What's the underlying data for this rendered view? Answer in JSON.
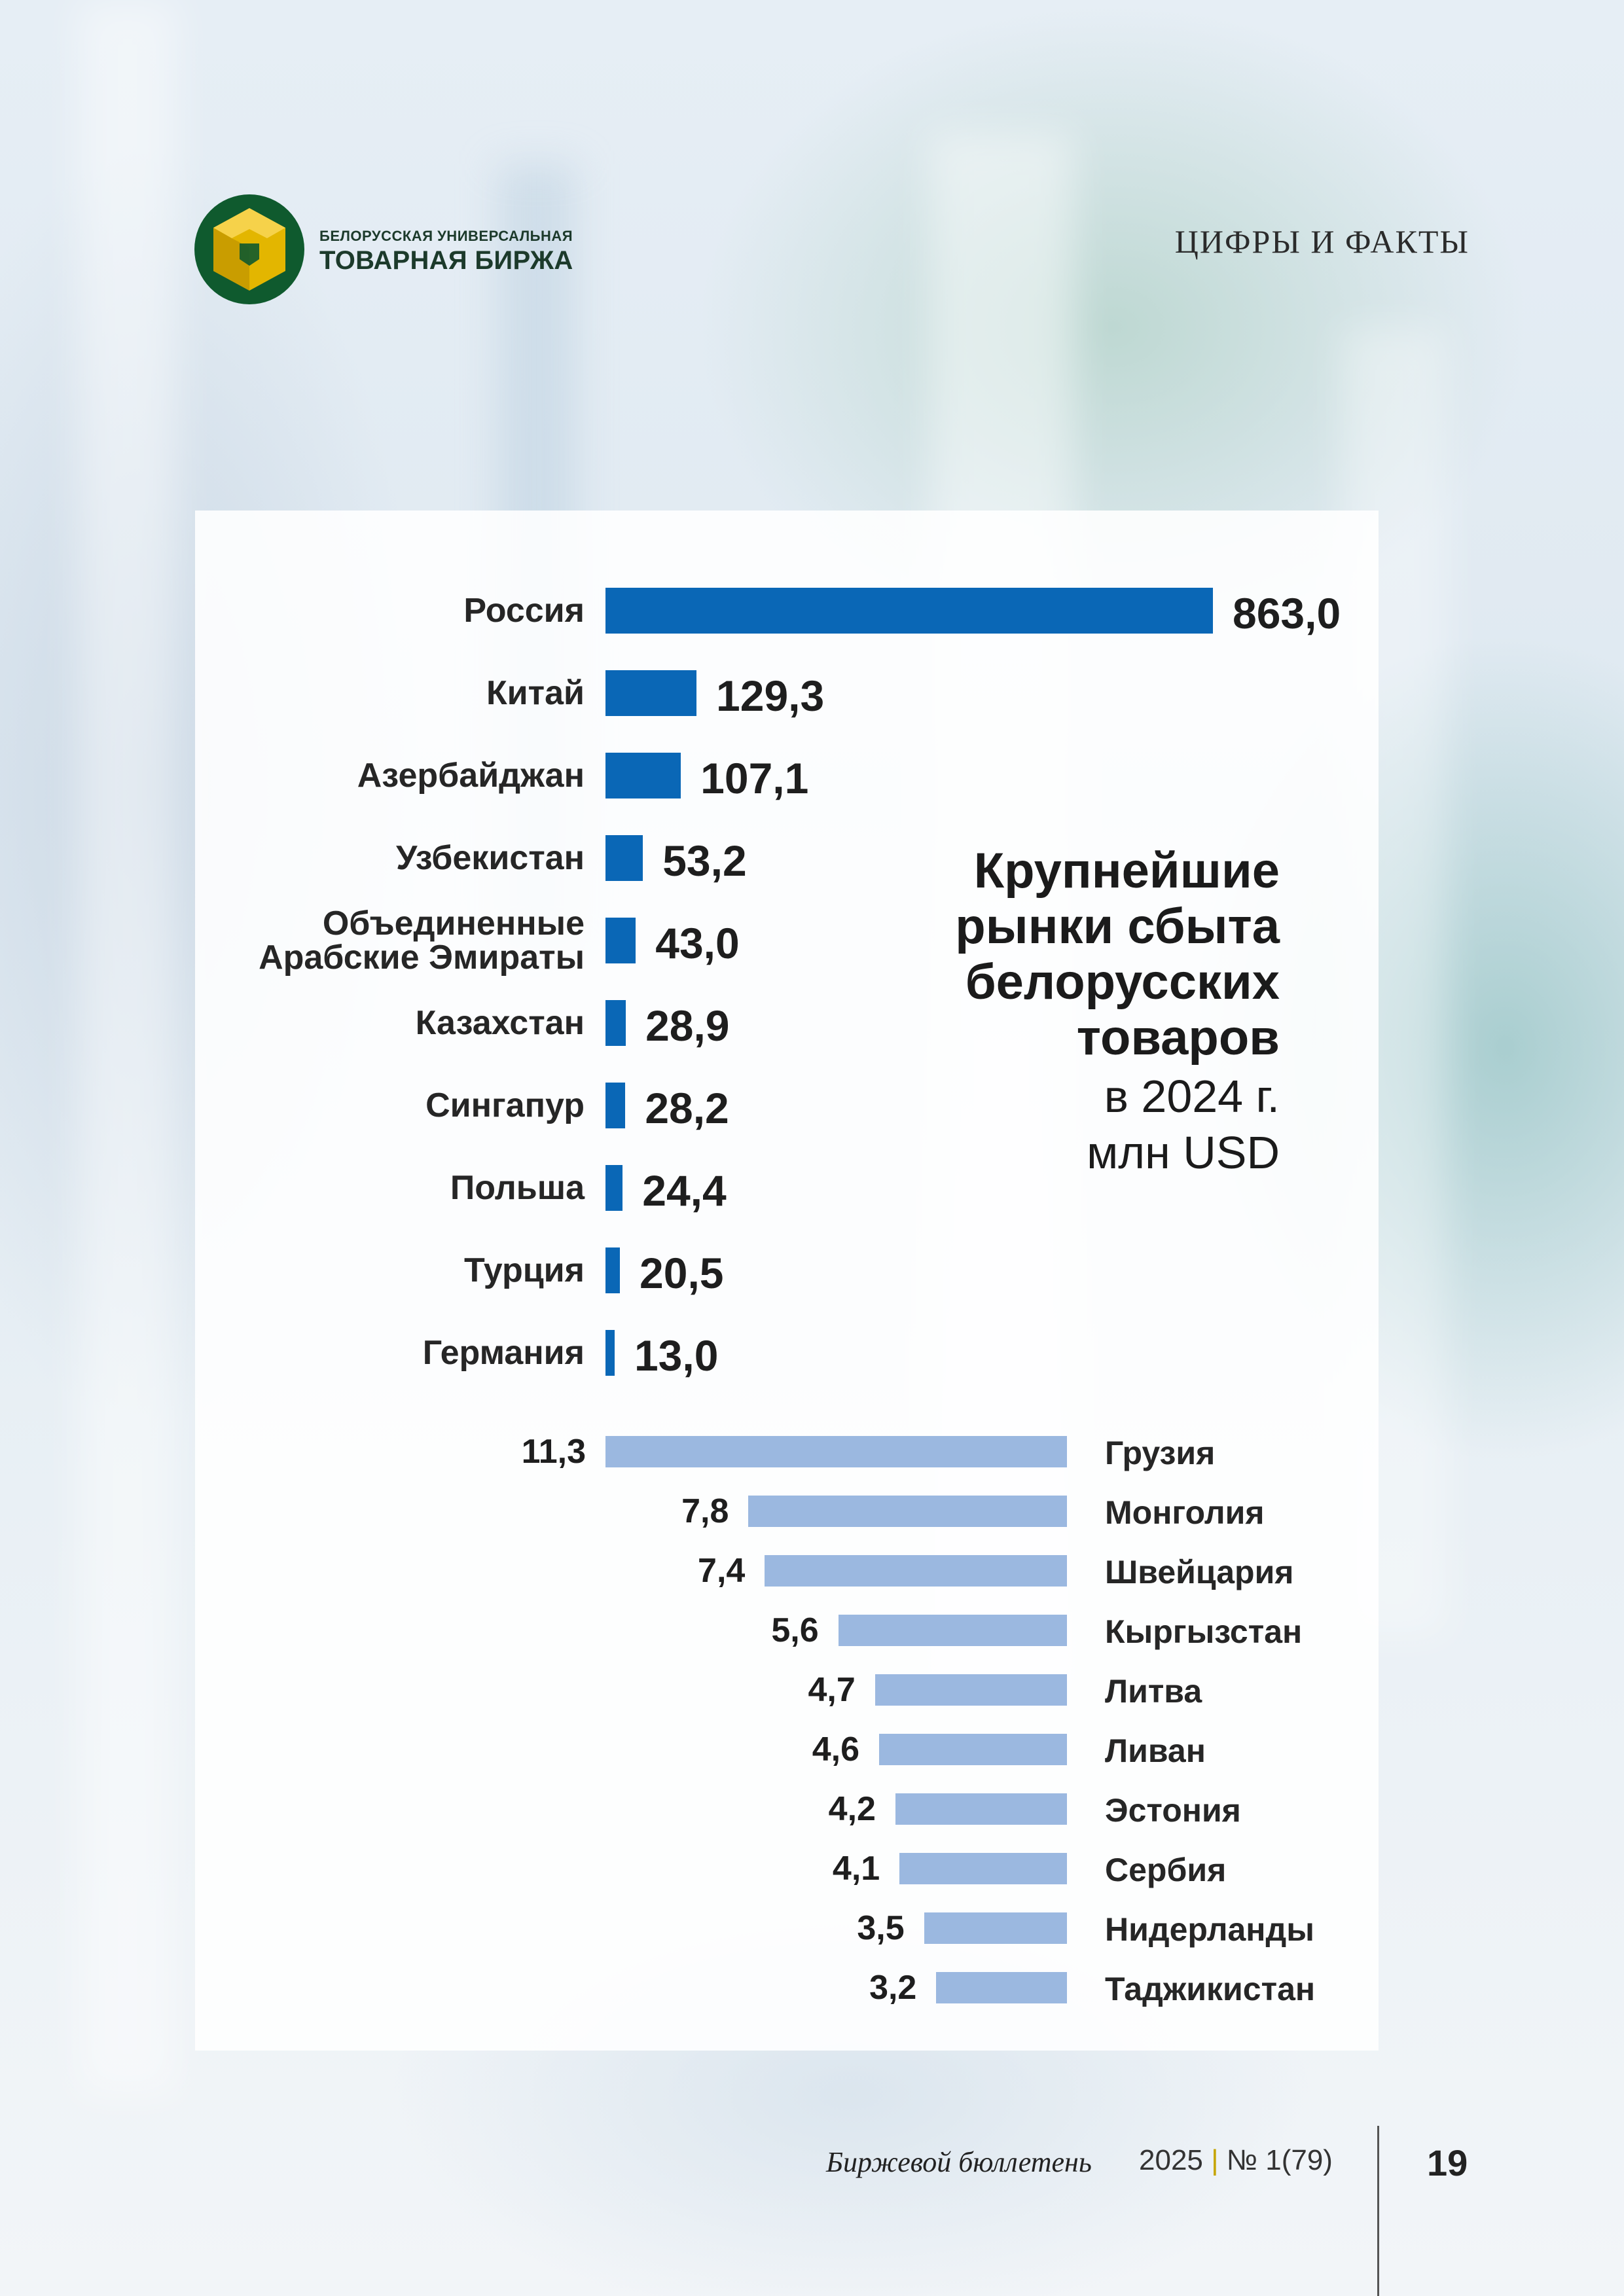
{
  "header": {
    "brand_line1": "БЕЛОРУССКАЯ УНИВЕРСАЛЬНАЯ",
    "brand_line2": "ТОВАРНАЯ БИРЖА",
    "section": "ЦИФРЫ И ФАКТЫ"
  },
  "colors": {
    "primary_bar": "#0a67b6",
    "secondary_bar": "#9bb8e0",
    "logo_green": "#0f5a2e",
    "logo_gold": "#e3b600"
  },
  "chart_title": {
    "line1": "Крупнейшие",
    "line2": "рынки сбыта",
    "line3": "белорусских",
    "line4": "товаров",
    "line5": "в 2024 г.",
    "line6": "млн USD"
  },
  "chart_data": [
    {
      "type": "bar",
      "orientation": "horizontal",
      "title": "Крупнейшие рынки сбыта белорусских товаров в 2024 г. млн USD",
      "categories": [
        "Россия",
        "Китай",
        "Азербайджан",
        "Узбекистан",
        "Объединенные Арабские Эмираты",
        "Казахстан",
        "Сингапур",
        "Польша",
        "Турция",
        "Германия"
      ],
      "category_lines": [
        [
          "Россия"
        ],
        [
          "Китай"
        ],
        [
          "Азербайджан"
        ],
        [
          "Узбекистан"
        ],
        [
          "Объединенные",
          "Арабские Эмираты"
        ],
        [
          "Казахстан"
        ],
        [
          "Сингапур"
        ],
        [
          "Польша"
        ],
        [
          "Турция"
        ],
        [
          "Германия"
        ]
      ],
      "values": [
        863.0,
        129.3,
        107.1,
        53.2,
        43.0,
        28.9,
        28.2,
        24.4,
        20.5,
        13.0
      ],
      "value_labels": [
        "863,0",
        "129,3",
        "107,1",
        "53,2",
        "43,0",
        "28,9",
        "28,2",
        "24,4",
        "20,5",
        "13,0"
      ],
      "xlim": [
        0,
        863
      ],
      "color": "#0a67b6",
      "grid": false
    },
    {
      "type": "bar",
      "orientation": "horizontal",
      "direction": "right-to-left",
      "categories": [
        "Грузия",
        "Монголия",
        "Швейцария",
        "Кыргызстан",
        "Литва",
        "Ливан",
        "Эстония",
        "Сербия",
        "Нидерланды",
        "Таджикистан"
      ],
      "values": [
        11.3,
        7.8,
        7.4,
        5.6,
        4.7,
        4.6,
        4.2,
        4.1,
        3.5,
        3.2
      ],
      "value_labels": [
        "11,3",
        "7,8",
        "7,4",
        "5,6",
        "4,7",
        "4,6",
        "4,2",
        "4,1",
        "3,5",
        "3,2"
      ],
      "xlim": [
        0,
        11.3
      ],
      "color": "#9bb8e0",
      "grid": false
    }
  ],
  "footer": {
    "magazine": "Биржевой бюллетень",
    "year": "2025",
    "separator": "|",
    "issue": "№ 1(79)",
    "page": "19"
  }
}
